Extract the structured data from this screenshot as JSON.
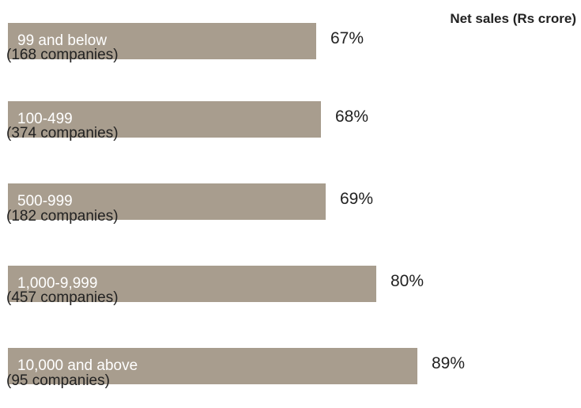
{
  "chart_data": {
    "type": "bar",
    "orientation": "horizontal",
    "title": "Net sales (Rs crore)",
    "categories": [
      "99 and below",
      "100-499",
      "500-999",
      "1,000-9,999",
      "10,000 and above"
    ],
    "counts": [
      "(168 companies)",
      "(374 companies)",
      "(182 companies)",
      "(457 companies)",
      "(95 companies)"
    ],
    "values": [
      67,
      68,
      69,
      80,
      89
    ],
    "value_labels": [
      "67%",
      "68%",
      "69%",
      "80%",
      "89%"
    ],
    "bar_color": "#a89d8e",
    "grid": false
  }
}
